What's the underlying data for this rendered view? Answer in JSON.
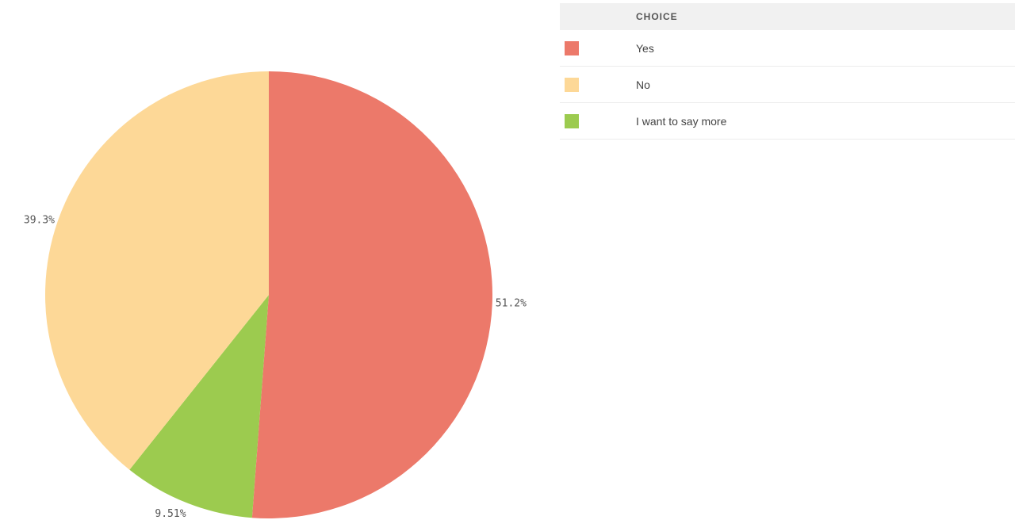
{
  "legend": {
    "header": "CHOICE"
  },
  "chart_data": {
    "type": "pie",
    "start": "top",
    "direction": "clockwise",
    "slices": [
      {
        "name": "Yes",
        "value": 51.2,
        "label": "51.2%",
        "color": "#ec796a"
      },
      {
        "name": "I want to say more",
        "value": 9.51,
        "label": "9.51%",
        "color": "#9ccb4f"
      },
      {
        "name": "No",
        "value": 39.3,
        "label": "39.3%",
        "color": "#fdd897"
      }
    ],
    "legend_order": [
      "Yes",
      "No",
      "I want to say more"
    ],
    "legend_placement": "right"
  }
}
